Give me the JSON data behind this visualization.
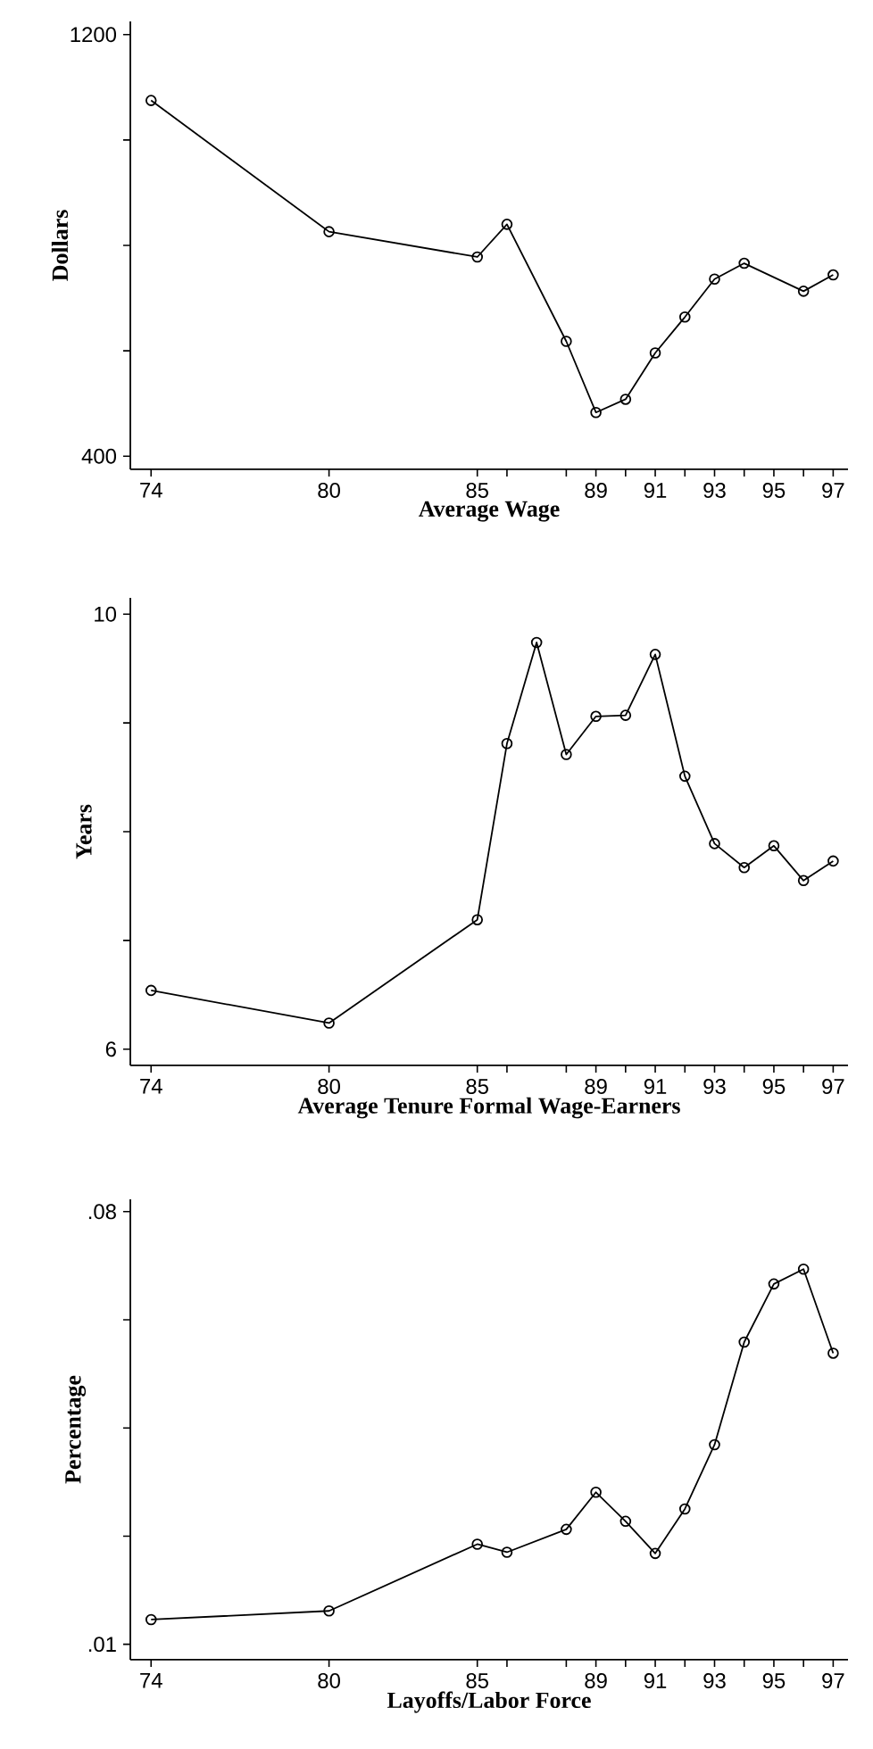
{
  "chart_data": [
    {
      "type": "line",
      "xlabel": "Average Wage",
      "ylabel": "Dollars",
      "color": "#000000",
      "marker": "circle",
      "line_style": "solid",
      "x": [
        74,
        80,
        85,
        86,
        88,
        89,
        90,
        91,
        92,
        93,
        94,
        96,
        97
      ],
      "values": [
        1075,
        826,
        778,
        840,
        618,
        483,
        508,
        596,
        664,
        736,
        766,
        713,
        744
      ],
      "xlim": [
        73.3,
        97.5
      ],
      "ylim": [
        375,
        1225
      ],
      "xticks": [
        74,
        80,
        85,
        {
          "value": 86,
          "label": null
        },
        {
          "value": 88,
          "label": null
        },
        89,
        {
          "value": 90,
          "label": null
        },
        91,
        {
          "value": 92,
          "label": null
        },
        93,
        {
          "value": 94,
          "label": null
        },
        95,
        {
          "value": 96,
          "label": null
        },
        97
      ],
      "yticks": [
        400,
        {
          "value": 600,
          "label": null
        },
        {
          "value": 800,
          "label": null
        },
        {
          "value": 1000,
          "label": null
        },
        1200
      ]
    },
    {
      "type": "line",
      "xlabel": "Average Tenure Formal Wage-Earners",
      "ylabel": "Years",
      "color": "#000000",
      "marker": "circle",
      "line_style": "solid",
      "x": [
        74,
        80,
        85,
        86,
        87,
        88,
        89,
        90,
        91,
        92,
        93,
        94,
        95,
        96,
        97
      ],
      "values": [
        6.54,
        6.24,
        7.19,
        8.81,
        9.74,
        8.71,
        9.06,
        9.07,
        9.63,
        8.51,
        7.89,
        7.67,
        7.87,
        7.55,
        7.73
      ],
      "xlim": [
        73.3,
        97.5
      ],
      "ylim": [
        5.85,
        10.15
      ],
      "xticks": [
        74,
        80,
        85,
        {
          "value": 86,
          "label": null
        },
        {
          "value": 88,
          "label": null
        },
        89,
        {
          "value": 90,
          "label": null
        },
        91,
        {
          "value": 92,
          "label": null
        },
        93,
        {
          "value": 94,
          "label": null
        },
        95,
        {
          "value": 96,
          "label": null
        },
        97
      ],
      "yticks": [
        6,
        {
          "value": 7,
          "label": null
        },
        {
          "value": 8,
          "label": null
        },
        {
          "value": 9,
          "label": null
        },
        10
      ]
    },
    {
      "type": "line",
      "xlabel": "Layoffs/Labor Force",
      "ylabel": "Percentage",
      "color": "#000000",
      "marker": "circle",
      "line_style": "solid",
      "x": [
        74,
        80,
        85,
        86,
        88,
        89,
        90,
        91,
        92,
        93,
        94,
        95,
        96,
        97
      ],
      "values": [
        0.014,
        0.0154,
        0.0262,
        0.0249,
        0.0286,
        0.0346,
        0.0299,
        0.0247,
        0.0319,
        0.0423,
        0.0589,
        0.0683,
        0.0707,
        0.0571
      ],
      "xlim": [
        73.3,
        97.5
      ],
      "ylim": [
        0.0075,
        0.082
      ],
      "xticks": [
        74,
        80,
        85,
        {
          "value": 86,
          "label": null
        },
        {
          "value": 88,
          "label": null
        },
        89,
        {
          "value": 90,
          "label": null
        },
        91,
        {
          "value": 92,
          "label": null
        },
        93,
        {
          "value": 94,
          "label": null
        },
        95,
        {
          "value": 96,
          "label": null
        },
        97
      ],
      "yticks": [
        {
          "value": 0.01,
          "label": ".01"
        },
        {
          "value": 0.0275,
          "label": null
        },
        {
          "value": 0.045,
          "label": null
        },
        {
          "value": 0.0625,
          "label": null
        },
        {
          "value": 0.08,
          "label": ".08"
        }
      ]
    }
  ]
}
